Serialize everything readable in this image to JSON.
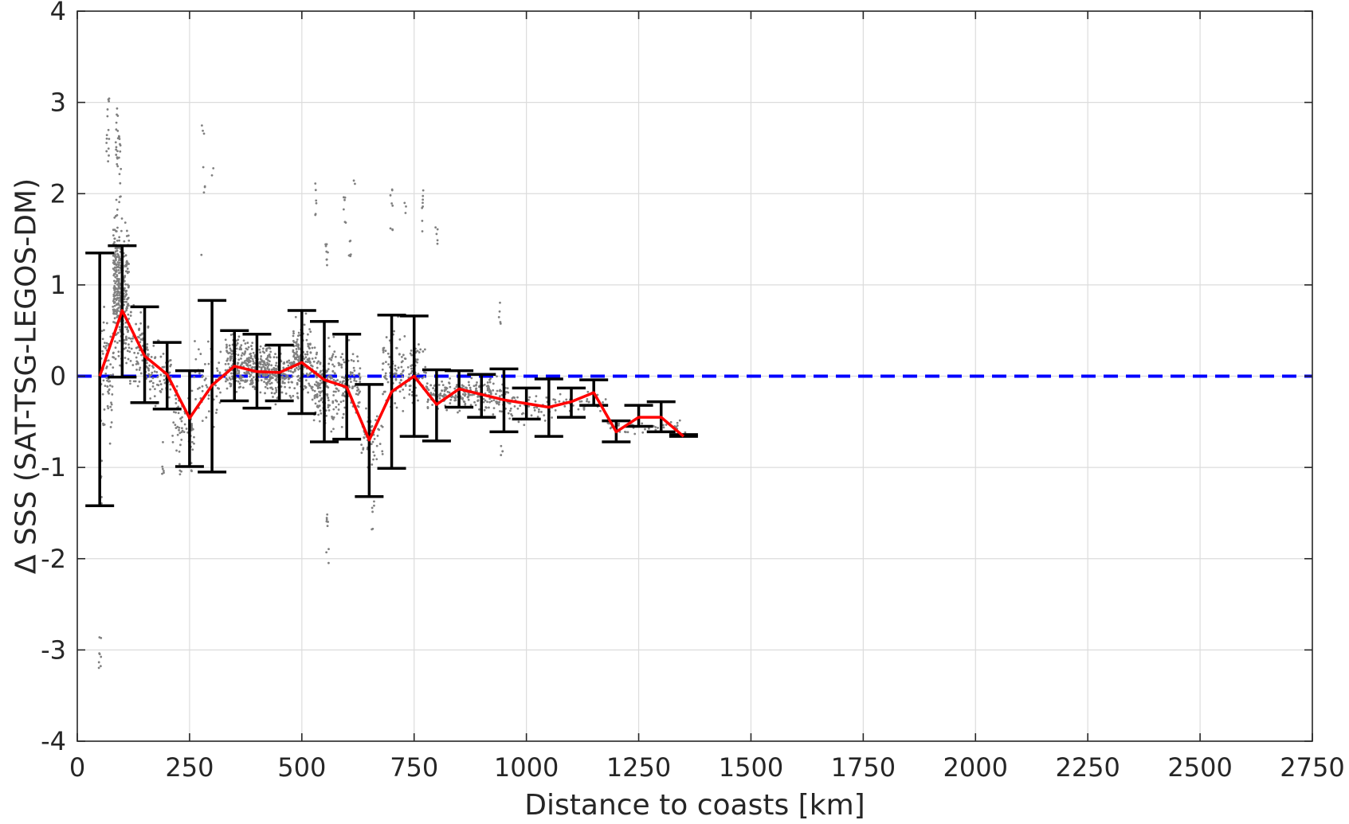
{
  "chart_data": {
    "type": "scatter",
    "title": "",
    "xlabel": "Distance to coasts [km]",
    "ylabel": "Δ SSS (SAT-TSG-LEGOS-DM)",
    "xlim": [
      0,
      2750
    ],
    "ylim": [
      -4,
      4
    ],
    "x_ticks": [
      0,
      250,
      500,
      750,
      1000,
      1250,
      1500,
      1750,
      2000,
      2250,
      2500,
      2750
    ],
    "y_ticks": [
      -4,
      -3,
      -2,
      -1,
      0,
      1,
      2,
      3,
      4
    ],
    "grid": true,
    "legend": "none",
    "colors": {
      "scatter": "#808080",
      "mean_line": "#ff0000",
      "error_bars": "#000000",
      "zero_line": "#0000ff"
    },
    "reference_line": {
      "y": 0,
      "style": "dashed"
    },
    "binned_stats": {
      "x": [
        50,
        100,
        150,
        200,
        250,
        300,
        350,
        400,
        450,
        500,
        550,
        600,
        650,
        700,
        750,
        800,
        850,
        900,
        950,
        1000,
        1050,
        1100,
        1150,
        1200,
        1250,
        1300,
        1350
      ],
      "mean": [
        0.0,
        0.72,
        0.22,
        0.02,
        -0.46,
        -0.1,
        0.11,
        0.05,
        0.04,
        0.15,
        -0.04,
        -0.12,
        -0.7,
        -0.17,
        0.0,
        -0.31,
        -0.14,
        -0.2,
        -0.26,
        -0.3,
        -0.34,
        -0.28,
        -0.18,
        -0.61,
        -0.45,
        -0.45,
        -0.66
      ],
      "upper": [
        1.35,
        1.43,
        0.76,
        0.37,
        0.06,
        0.83,
        0.5,
        0.46,
        0.34,
        0.72,
        0.6,
        0.46,
        -0.09,
        0.67,
        0.66,
        0.07,
        0.06,
        0.02,
        0.08,
        -0.13,
        -0.03,
        -0.13,
        -0.04,
        -0.49,
        -0.32,
        -0.28,
        -0.64
      ],
      "lower": [
        -1.42,
        -0.01,
        -0.29,
        -0.36,
        -0.99,
        -1.05,
        -0.27,
        -0.35,
        -0.27,
        -0.41,
        -0.72,
        -0.69,
        -1.32,
        -1.01,
        -0.66,
        -0.71,
        -0.34,
        -0.45,
        -0.61,
        -0.47,
        -0.66,
        -0.45,
        -0.32,
        -0.72,
        -0.55,
        -0.61,
        -0.66
      ]
    },
    "scatter_clusters": [
      {
        "x": [
          50,
          80
        ],
        "center": 0.0,
        "spread": 0.85,
        "count": 70
      },
      {
        "x": [
          80,
          100
        ],
        "center": 1.0,
        "spread": 0.9,
        "count": 260
      },
      {
        "x": [
          100,
          115
        ],
        "center": 0.9,
        "spread": 0.9,
        "count": 110
      },
      {
        "x": [
          115,
          160
        ],
        "center": 0.25,
        "spread": 0.55,
        "count": 90
      },
      {
        "x": [
          160,
          210
        ],
        "center": 0.0,
        "spread": 0.4,
        "count": 70
      },
      {
        "x": [
          210,
          260
        ],
        "center": -0.5,
        "spread": 0.45,
        "count": 60
      },
      {
        "x": [
          260,
          320
        ],
        "center": -0.1,
        "spread": 0.5,
        "count": 60
      },
      {
        "x": [
          330,
          380
        ],
        "center": 0.15,
        "spread": 0.35,
        "count": 160
      },
      {
        "x": [
          380,
          430
        ],
        "center": 0.1,
        "spread": 0.35,
        "count": 170
      },
      {
        "x": [
          430,
          480
        ],
        "center": 0.0,
        "spread": 0.3,
        "count": 120
      },
      {
        "x": [
          480,
          520
        ],
        "center": 0.2,
        "spread": 0.45,
        "count": 150
      },
      {
        "x": [
          520,
          580
        ],
        "center": -0.1,
        "spread": 0.55,
        "count": 170
      },
      {
        "x": [
          580,
          630
        ],
        "center": -0.1,
        "spread": 0.45,
        "count": 90
      },
      {
        "x": [
          630,
          680
        ],
        "center": -0.7,
        "spread": 0.4,
        "count": 50
      },
      {
        "x": [
          680,
          730
        ],
        "center": 0.1,
        "spread": 0.5,
        "count": 80
      },
      {
        "x": [
          730,
          780
        ],
        "center": 0.0,
        "spread": 0.45,
        "count": 70
      },
      {
        "x": [
          780,
          880
        ],
        "center": -0.2,
        "spread": 0.2,
        "count": 130
      },
      {
        "x": [
          880,
          960
        ],
        "center": -0.2,
        "spread": 0.25,
        "count": 100
      },
      {
        "x": [
          960,
          1060
        ],
        "center": -0.35,
        "spread": 0.18,
        "count": 60
      },
      {
        "x": [
          1060,
          1180
        ],
        "center": -0.3,
        "spread": 0.12,
        "count": 40
      },
      {
        "x": [
          1180,
          1360
        ],
        "center": -0.55,
        "spread": 0.1,
        "count": 40
      }
    ],
    "scatter_outliers": [
      {
        "x": 68,
        "y_range": [
          2.3,
          3.05
        ],
        "count": 14
      },
      {
        "x": 88,
        "y_range": [
          2.3,
          3.0
        ],
        "count": 16
      },
      {
        "x": 95,
        "y_range": [
          1.9,
          2.65
        ],
        "count": 14
      },
      {
        "x": 50,
        "y_range": [
          -3.28,
          -2.85
        ],
        "count": 8
      },
      {
        "x": 55,
        "y_range": [
          -1.4,
          -0.9
        ],
        "count": 6
      },
      {
        "x": 280,
        "y_range": [
          2.65,
          2.75
        ],
        "count": 3
      },
      {
        "x": 282,
        "y_range": [
          2.0,
          2.3
        ],
        "count": 4
      },
      {
        "x": 300,
        "y_range": [
          2.15,
          2.3
        ],
        "count": 2
      },
      {
        "x": 278,
        "y_range": [
          1.3,
          1.35
        ],
        "count": 1
      },
      {
        "x": 530,
        "y_range": [
          1.7,
          2.15
        ],
        "count": 6
      },
      {
        "x": 555,
        "y_range": [
          1.2,
          1.55
        ],
        "count": 8
      },
      {
        "x": 557,
        "y_range": [
          -2.05,
          -1.5
        ],
        "count": 9
      },
      {
        "x": 595,
        "y_range": [
          1.6,
          2.0
        ],
        "count": 6
      },
      {
        "x": 608,
        "y_range": [
          1.2,
          1.5
        ],
        "count": 6
      },
      {
        "x": 618,
        "y_range": [
          2.1,
          2.25
        ],
        "count": 2
      },
      {
        "x": 700,
        "y_range": [
          1.6,
          2.15
        ],
        "count": 8
      },
      {
        "x": 730,
        "y_range": [
          1.75,
          1.95
        ],
        "count": 3
      },
      {
        "x": 770,
        "y_range": [
          1.55,
          2.05
        ],
        "count": 8
      },
      {
        "x": 800,
        "y_range": [
          1.45,
          1.65
        ],
        "count": 5
      },
      {
        "x": 658,
        "y_range": [
          -1.7,
          -1.35
        ],
        "count": 6
      },
      {
        "x": 940,
        "y_range": [
          0.55,
          0.85
        ],
        "count": 5
      },
      {
        "x": 945,
        "y_range": [
          -1.0,
          -0.7
        ],
        "count": 4
      },
      {
        "x": 190,
        "y_range": [
          -1.1,
          -0.65
        ],
        "count": 6
      },
      {
        "x": 230,
        "y_range": [
          -1.1,
          -0.95
        ],
        "count": 4
      },
      {
        "x": 255,
        "y_range": [
          -1.1,
          -0.95
        ],
        "count": 3
      }
    ]
  }
}
